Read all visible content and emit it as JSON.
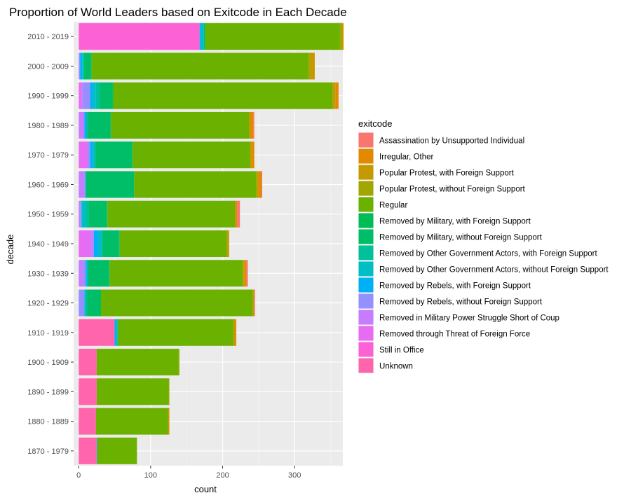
{
  "chart_data": {
    "type": "bar",
    "orientation": "horizontal",
    "stacked": true,
    "title": "Proportion of World Leaders based on Exitcode in Each Decade",
    "xlabel": "count",
    "ylabel": "decade",
    "xlim": [
      -7,
      367
    ],
    "xticks": [
      0,
      100,
      200,
      300
    ],
    "grid": true,
    "legend_position": "right",
    "legend_title": "exitcode",
    "categories": [
      "2010 - 2019",
      "2000 - 2009",
      "1990 - 1999",
      "1980 - 1989",
      "1970 - 1979",
      "1960 - 1969",
      "1950 - 1959",
      "1940 - 1949",
      "1930 - 1939",
      "1920 - 1929",
      "1910 - 1919",
      "1900 - 1909",
      "1890 - 1899",
      "1880 - 1889",
      "1870 - 1979"
    ],
    "series": [
      {
        "name": "Unknown",
        "color": "#FF65AC",
        "values": [
          0,
          0,
          0,
          0,
          0,
          0,
          0,
          0,
          0,
          0,
          50,
          25,
          25,
          24,
          25
        ]
      },
      {
        "name": "Still in Office",
        "color": "#FC61D5",
        "values": [
          168,
          0,
          0,
          0,
          0,
          0,
          0,
          0,
          0,
          0,
          0,
          0,
          0,
          0,
          0
        ]
      },
      {
        "name": "Removed through Threat of Foreign Force",
        "color": "#E76BF3",
        "values": [
          0,
          0,
          4,
          0,
          12,
          0,
          0,
          16,
          0,
          0,
          0,
          0,
          0,
          0,
          0
        ]
      },
      {
        "name": "Removed in Military Power Struggle Short of Coup",
        "color": "#C77CFF",
        "values": [
          0,
          0,
          2,
          8,
          1,
          8,
          2,
          5,
          6,
          0,
          0,
          0,
          0,
          0,
          0
        ]
      },
      {
        "name": "Removed by Rebels, without Foreign Support",
        "color": "#9590FF",
        "values": [
          0,
          2,
          10,
          0,
          3,
          1,
          2,
          0,
          4,
          8,
          0,
          0,
          0,
          0,
          0
        ]
      },
      {
        "name": "Removed by Rebels, with Foreign Support",
        "color": "#00B0F6",
        "values": [
          2,
          3,
          4,
          3,
          4,
          0,
          0,
          6,
          1,
          0,
          2,
          0,
          0,
          0,
          0
        ]
      },
      {
        "name": "Removed by Other Government Actors, without Foreign Support",
        "color": "#00BFC4",
        "values": [
          4,
          2,
          4,
          0,
          3,
          1,
          6,
          6,
          2,
          2,
          2,
          0,
          0,
          0,
          1
        ]
      },
      {
        "name": "Removed by Other Government Actors, with Foreign Support",
        "color": "#00C19A",
        "values": [
          0,
          0,
          6,
          2,
          0,
          1,
          4,
          0,
          0,
          2,
          0,
          0,
          0,
          0,
          0
        ]
      },
      {
        "name": "Removed by Military, without Foreign Support",
        "color": "#00BE67",
        "values": [
          2,
          10,
          17,
          31,
          51,
          66,
          25,
          23,
          29,
          18,
          0,
          0,
          0,
          0,
          0
        ]
      },
      {
        "name": "Removed by Military, with Foreign Support",
        "color": "#00BC56",
        "values": [
          0,
          1,
          1,
          1,
          1,
          0,
          1,
          1,
          1,
          1,
          1,
          0,
          0,
          0,
          0
        ]
      },
      {
        "name": "Regular",
        "color": "#6BB100",
        "values": [
          187,
          302,
          305,
          192,
          163,
          170,
          177,
          149,
          185,
          211,
          160,
          114,
          100,
          100,
          55
        ]
      },
      {
        "name": "Popular Protest, without Foreign Support",
        "color": "#A3A500",
        "values": [
          3,
          0,
          0,
          0,
          0,
          0,
          0,
          0,
          0,
          0,
          0,
          1,
          1,
          1,
          0
        ]
      },
      {
        "name": "Popular Protest, with Foreign Support",
        "color": "#C49A00",
        "values": [
          2,
          8,
          4,
          1,
          3,
          3,
          2,
          3,
          2,
          2,
          2,
          0,
          0,
          0,
          0
        ]
      },
      {
        "name": "Irregular, Other",
        "color": "#E38900",
        "values": [
          0,
          0,
          4,
          5,
          3,
          4,
          1,
          0,
          3,
          0,
          2,
          0,
          0,
          1,
          0
        ]
      },
      {
        "name": "Assassination by Unsupported Individual",
        "color": "#F8766D",
        "values": [
          0,
          0,
          0,
          1,
          0,
          1,
          4,
          0,
          2,
          1,
          0,
          0,
          0,
          0,
          0
        ]
      }
    ],
    "legend_order": [
      "Assassination by Unsupported Individual",
      "Irregular, Other",
      "Popular Protest, with Foreign Support",
      "Popular Protest, without Foreign Support",
      "Regular",
      "Removed by Military, with Foreign Support",
      "Removed by Military, without Foreign Support",
      "Removed by Other Government Actors, with Foreign Support",
      "Removed by Other Government Actors, without Foreign Support",
      "Removed by Rebels, with Foreign Support",
      "Removed by Rebels, without Foreign Support",
      "Removed in Military Power Struggle Short of Coup",
      "Removed through Threat of Foreign Force",
      "Still in Office",
      "Unknown"
    ]
  }
}
